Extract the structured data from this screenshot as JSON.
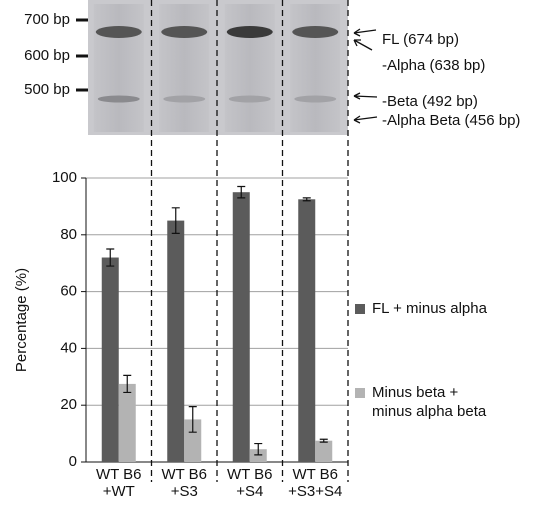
{
  "gel": {
    "markers": [
      "700 bp",
      "600 bp",
      "500 bp"
    ],
    "bands": [
      "FL (674 bp)",
      "-Alpha (638 bp)",
      "-Beta (492 bp)",
      "-Alpha Beta (456 bp)"
    ]
  },
  "chart_data": {
    "type": "bar",
    "y_label": "Percentage (%)",
    "categories": [
      "WT B6 +WT",
      "WT B6 +S3",
      "WT B6 +S4",
      "WT B6 +S3+S4"
    ],
    "series": [
      {
        "name": "FL + minus alpha",
        "color": "#5b5b5b",
        "values": [
          72,
          85,
          95,
          92.5
        ],
        "errors": [
          3,
          4.5,
          2,
          0.5
        ]
      },
      {
        "name": "Minus beta + minus alpha beta",
        "color": "#b3b3b3",
        "values": [
          27.5,
          15,
          4.5,
          7.5
        ],
        "errors": [
          3,
          4.5,
          2,
          0.5
        ]
      }
    ],
    "ylim": [
      0,
      100
    ],
    "yticks": [
      0,
      20,
      40,
      60,
      80,
      100
    ],
    "grid": true
  }
}
